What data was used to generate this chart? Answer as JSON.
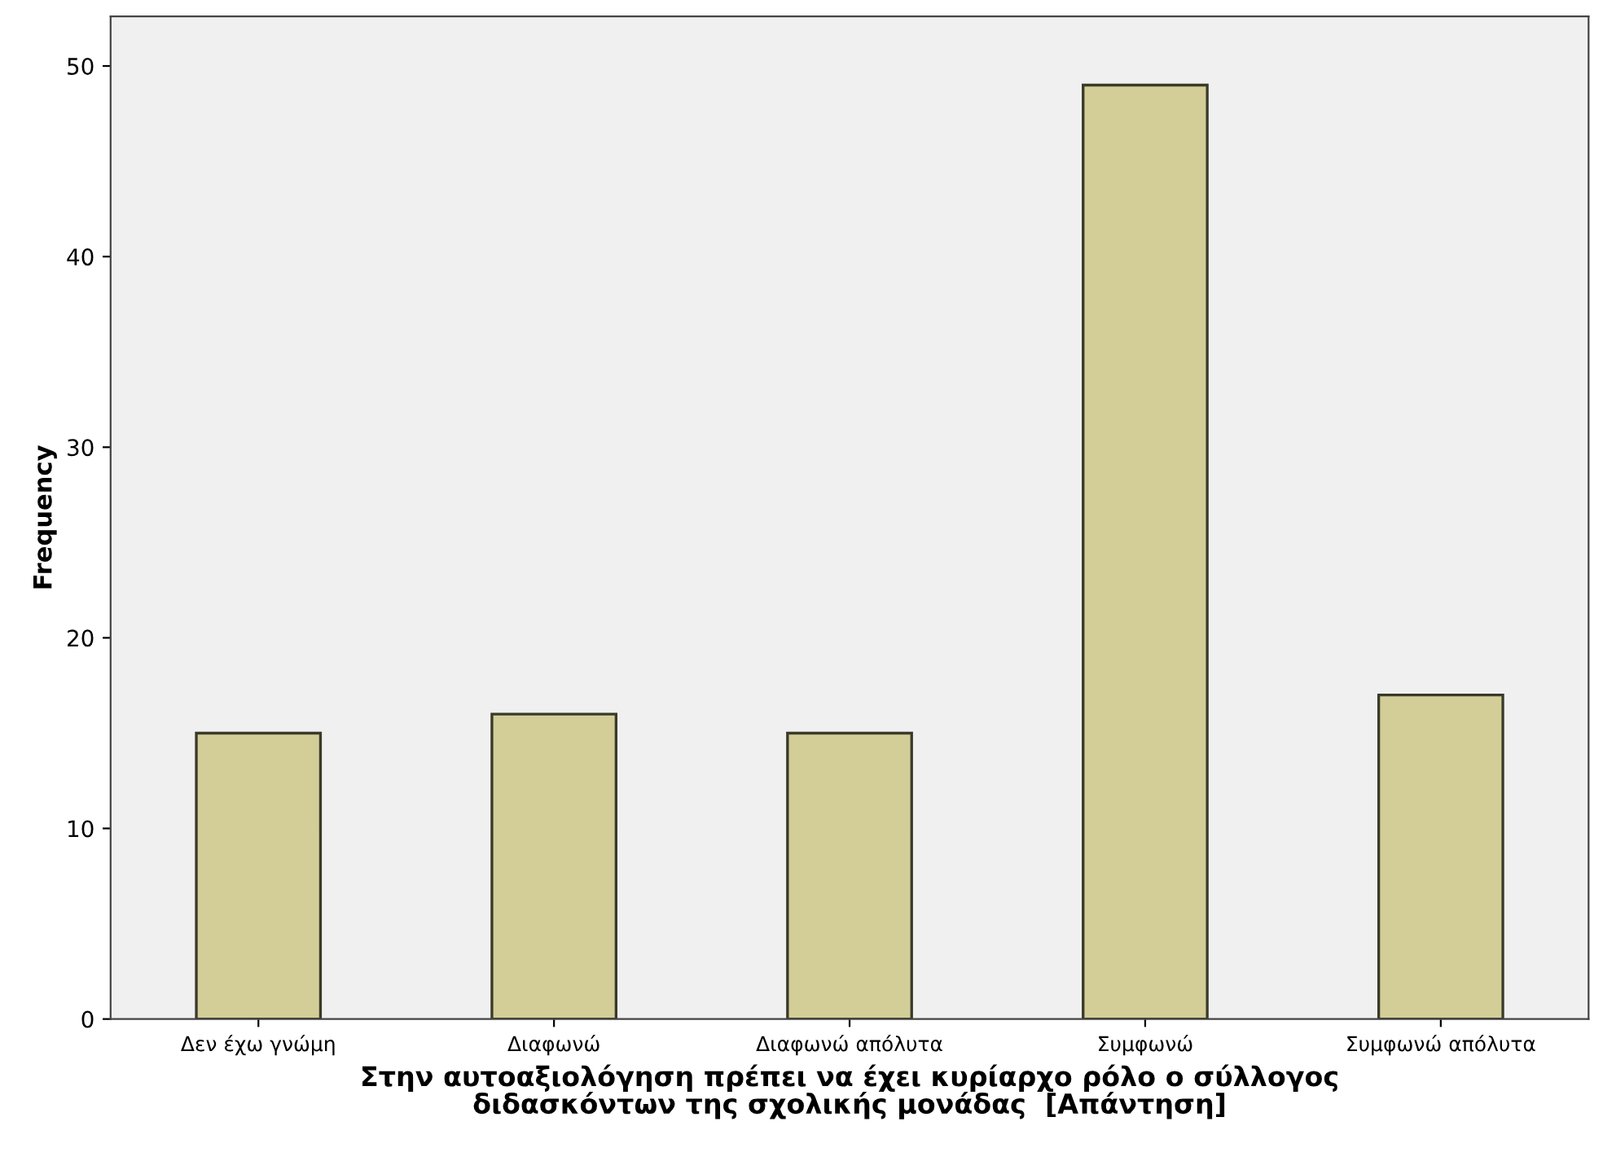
{
  "chart_data": {
    "type": "bar",
    "categories": [
      "Δεν έχω γνώμη",
      "Διαφωνώ",
      "Διαφωνώ απόλυτα",
      "Συμφωνώ",
      "Συμφωνώ απόλυτα"
    ],
    "values": [
      15,
      16,
      15,
      49,
      17
    ],
    "color": "#d3ce97",
    "xlabel": "Στην αυτοαξιολόγηση πρέπει να έχει κυρίαρχο ρόλο ο σύλλογος\nδιδασκόντων της σχολικής μονάδας  [Απάντηση]",
    "ylabel": "Frequency",
    "ylim": [
      0,
      52.6
    ],
    "yticks": [
      0,
      10,
      20,
      30,
      40,
      50
    ],
    "grid": false
  }
}
